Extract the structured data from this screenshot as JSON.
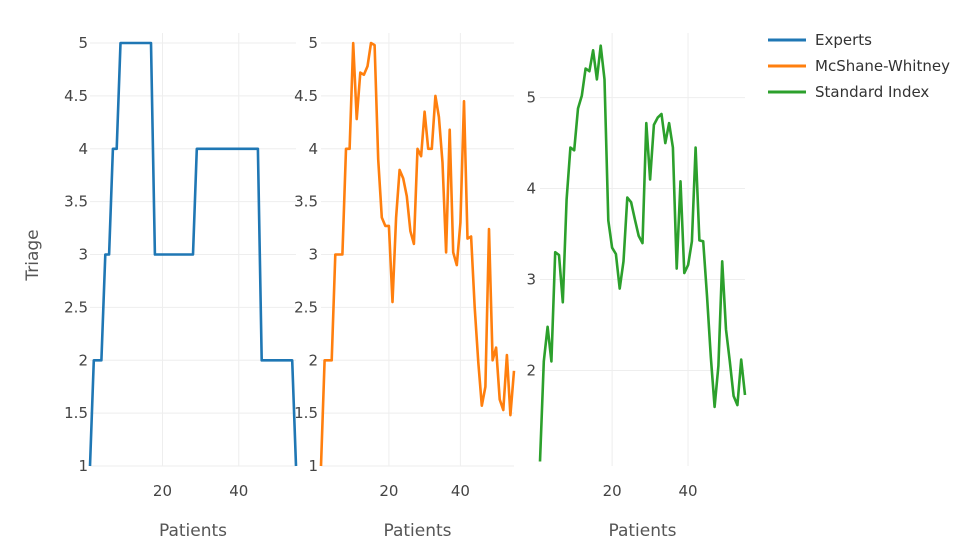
{
  "legend": [
    {
      "name": "Experts",
      "color": "#1f77b4"
    },
    {
      "name": "McShane-Whitney",
      "color": "#ff7f0e"
    },
    {
      "name": "Standard Index",
      "color": "#2ca02c"
    }
  ],
  "ylabel": "Triage",
  "chart_data": [
    {
      "type": "line",
      "xlabel": "Patients",
      "ylabel": "Triage",
      "xlim": [
        1,
        55
      ],
      "ylim": [
        1,
        5
      ],
      "xticks": [
        20,
        40
      ],
      "yticks": [
        "1",
        "1.5",
        "2",
        "2.5",
        "3",
        "3.5",
        "4",
        "4.5",
        "5"
      ],
      "grid": true,
      "series": [
        {
          "name": "Experts",
          "color": "#1f77b4",
          "x": [
            1,
            2,
            3,
            4,
            5,
            6,
            7,
            8,
            9,
            10,
            11,
            12,
            13,
            14,
            15,
            16,
            17,
            18,
            19,
            20,
            21,
            22,
            23,
            24,
            25,
            26,
            27,
            28,
            29,
            30,
            31,
            32,
            33,
            34,
            35,
            36,
            37,
            38,
            39,
            40,
            41,
            42,
            43,
            44,
            45,
            46,
            47,
            48,
            49,
            50,
            51,
            52,
            53,
            54,
            55
          ],
          "y": [
            1,
            2,
            2,
            2,
            3,
            3,
            4,
            4,
            5,
            5,
            5,
            5,
            5,
            5,
            5,
            5,
            5,
            3,
            3,
            3,
            3,
            3,
            3,
            3,
            3,
            3,
            3,
            3,
            4,
            4,
            4,
            4,
            4,
            4,
            4,
            4,
            4,
            4,
            4,
            4,
            4,
            4,
            4,
            4,
            4,
            2,
            2,
            2,
            2,
            2,
            2,
            2,
            2,
            2,
            1
          ]
        }
      ]
    },
    {
      "type": "line",
      "xlabel": "Patients",
      "xlim": [
        1,
        55
      ],
      "ylim": [
        1,
        5
      ],
      "xticks": [
        20,
        40
      ],
      "yticks": [
        "1",
        "1.5",
        "2",
        "2.5",
        "3",
        "3.5",
        "4",
        "4.5",
        "5"
      ],
      "grid": true,
      "series": [
        {
          "name": "McShane-Whitney",
          "color": "#ff7f0e",
          "x": [
            1,
            2,
            3,
            4,
            5,
            6,
            7,
            8,
            9,
            10,
            11,
            12,
            13,
            14,
            15,
            16,
            17,
            18,
            19,
            20,
            21,
            22,
            23,
            24,
            25,
            26,
            27,
            28,
            29,
            30,
            31,
            32,
            33,
            34,
            35,
            36,
            37,
            38,
            39,
            40,
            41,
            42,
            43,
            44,
            45,
            46,
            47,
            48,
            49,
            50,
            51,
            52,
            53,
            54,
            55
          ],
          "y": [
            1,
            2,
            2,
            2,
            3,
            3,
            3,
            4,
            4,
            5,
            4.28,
            4.72,
            4.7,
            4.78,
            5,
            4.98,
            3.9,
            3.35,
            3.27,
            3.27,
            2.55,
            3.35,
            3.8,
            3.72,
            3.55,
            3.22,
            3.1,
            4,
            3.93,
            4.35,
            4,
            4,
            4.5,
            4.3,
            3.87,
            3.02,
            4.18,
            3.02,
            2.9,
            3.3,
            4.45,
            3.15,
            3.17,
            2.5,
            1.98,
            1.57,
            1.75,
            3.24,
            2,
            2.12,
            1.63,
            1.53,
            2.05,
            1.48,
            1.9
          ]
        }
      ]
    },
    {
      "type": "line",
      "xlabel": "Patients",
      "xlim": [
        1,
        55
      ],
      "ylim": [
        0.95,
        5.6
      ],
      "xticks": [
        20,
        40
      ],
      "yticks": [
        "2",
        "3",
        "4",
        "5"
      ],
      "grid": true,
      "series": [
        {
          "name": "Standard Index",
          "color": "#2ca02c",
          "x": [
            1,
            2,
            3,
            4,
            5,
            6,
            7,
            8,
            9,
            10,
            11,
            12,
            13,
            14,
            15,
            16,
            17,
            18,
            19,
            20,
            21,
            22,
            23,
            24,
            25,
            26,
            27,
            28,
            29,
            30,
            31,
            32,
            33,
            34,
            35,
            36,
            37,
            38,
            39,
            40,
            41,
            42,
            43,
            44,
            45,
            46,
            47,
            48,
            49,
            50,
            51,
            52,
            53,
            54,
            55
          ],
          "y": [
            1,
            2.1,
            2.48,
            2.1,
            3.3,
            3.27,
            2.75,
            3.88,
            4.45,
            4.42,
            4.88,
            5.02,
            5.32,
            5.29,
            5.52,
            5.2,
            5.57,
            5.2,
            3.65,
            3.35,
            3.28,
            2.9,
            3.2,
            3.9,
            3.85,
            3.66,
            3.48,
            3.4,
            4.72,
            4.1,
            4.7,
            4.78,
            4.82,
            4.5,
            4.72,
            4.45,
            3.12,
            4.08,
            3.07,
            3.16,
            3.42,
            4.45,
            3.43,
            3.42,
            2.82,
            2.15,
            1.6,
            2.05,
            3.2,
            2.45,
            2.1,
            1.72,
            1.62,
            2.12,
            1.73
          ]
        }
      ]
    }
  ]
}
